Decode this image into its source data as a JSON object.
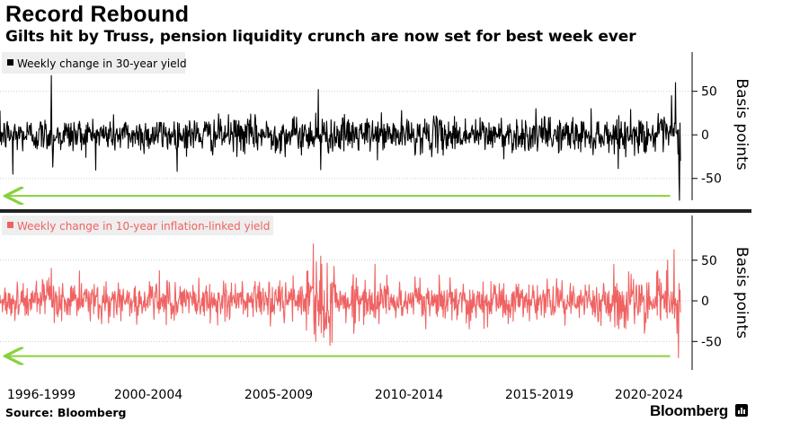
{
  "header": {
    "title": "Record Rebound",
    "subtitle": "Gilts hit by Truss, pension liquidity crunch are now set for best week ever"
  },
  "footer": {
    "source": "Source: Bloomberg",
    "brand": "Bloomberg"
  },
  "colors": {
    "panel1_line": "#000000",
    "panel2_line": "#f06262",
    "arrow": "#88d13c",
    "grid": "#cfcfcf",
    "axis": "#000000"
  },
  "chart_data": [
    {
      "type": "line",
      "legend": "Weekly change in 30-year yield",
      "legend_placement": "top-left",
      "ylabel": "Basis points",
      "ylim": [
        -75,
        95
      ],
      "yticks": [
        50,
        0,
        -50
      ],
      "ytick_labels": [
        "50",
        "0",
        "-50"
      ],
      "xlim": [
        1996.3,
        2022.8
      ],
      "x_categories": [
        "1996-1999",
        "2000-2004",
        "2005-2009",
        "2010-2014",
        "2015-2019",
        "2020-2024"
      ],
      "series": [
        {
          "name": "Weekly change in 30-year yield",
          "color": "#000000",
          "noise_sd_bp": 10,
          "spikes": [
            {
              "x": 1998.3,
              "y": 68
            },
            {
              "x": 1998.35,
              "y": -37
            },
            {
              "x": 1996.8,
              "y": -45
            },
            {
              "x": 2008.7,
              "y": 52
            },
            {
              "x": 2008.8,
              "y": -40
            },
            {
              "x": 2008.6,
              "y": 25
            },
            {
              "x": 2022.45,
              "y": 45
            },
            {
              "x": 2022.6,
              "y": 60
            },
            {
              "x": 2022.7,
              "y": -22
            },
            {
              "x": 2022.74,
              "y": -50
            },
            {
              "x": 2022.77,
              "y": -75
            }
          ]
        }
      ],
      "annotations": [
        {
          "type": "arrow",
          "direction": "left",
          "y": -70,
          "x_from": 2022.4,
          "x_to": 1996.5
        }
      ]
    },
    {
      "type": "line",
      "legend": "Weekly change in 10-year inflation-linked yield",
      "legend_placement": "top-left",
      "ylabel": "Basis points",
      "ylim": [
        -85,
        105
      ],
      "yticks": [
        50,
        0,
        -50
      ],
      "ytick_labels": [
        "50",
        "0",
        "-50"
      ],
      "xlim": [
        1996.3,
        2022.8
      ],
      "x_categories": [
        "1996-1999",
        "2000-2004",
        "2005-2009",
        "2010-2014",
        "2015-2019",
        "2020-2024"
      ],
      "series": [
        {
          "name": "Weekly change in 10-year inflation-linked yield",
          "color": "#f06262",
          "noise_sd_bp": 12,
          "spikes": [
            {
              "x": 1998.3,
              "y": 40
            },
            {
              "x": 2008.5,
              "y": 70
            },
            {
              "x": 2008.6,
              "y": -50
            },
            {
              "x": 2008.8,
              "y": 55
            },
            {
              "x": 2008.9,
              "y": -45
            },
            {
              "x": 2010.9,
              "y": 45
            },
            {
              "x": 2020.2,
              "y": 45
            },
            {
              "x": 2022.3,
              "y": 50
            },
            {
              "x": 2022.55,
              "y": 63
            },
            {
              "x": 2022.66,
              "y": -40
            },
            {
              "x": 2022.72,
              "y": -70
            }
          ]
        }
      ],
      "annotations": [
        {
          "type": "arrow",
          "direction": "left",
          "y": -68,
          "x_from": 2022.4,
          "x_to": 1996.5
        }
      ]
    }
  ]
}
